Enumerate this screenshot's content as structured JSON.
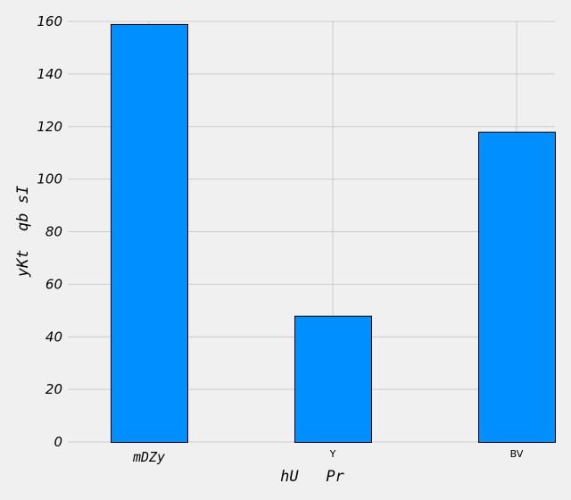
{
  "chart_data": {
    "type": "bar",
    "title": "",
    "xlabel": "hU   Pr",
    "ylabel": "yKt  qb sI",
    "categories": [
      "mDZy",
      "Y",
      "BV"
    ],
    "values": [
      159,
      48,
      118
    ],
    "ylim": [
      0,
      160
    ],
    "yticks": [
      0,
      20,
      40,
      60,
      80,
      100,
      120,
      140,
      160
    ],
    "grid": true,
    "legend": "none",
    "colors": {
      "bar": "#008fff",
      "edge": "#000000",
      "background": "#f0f0f0",
      "grid": "#cbcbcb"
    }
  }
}
